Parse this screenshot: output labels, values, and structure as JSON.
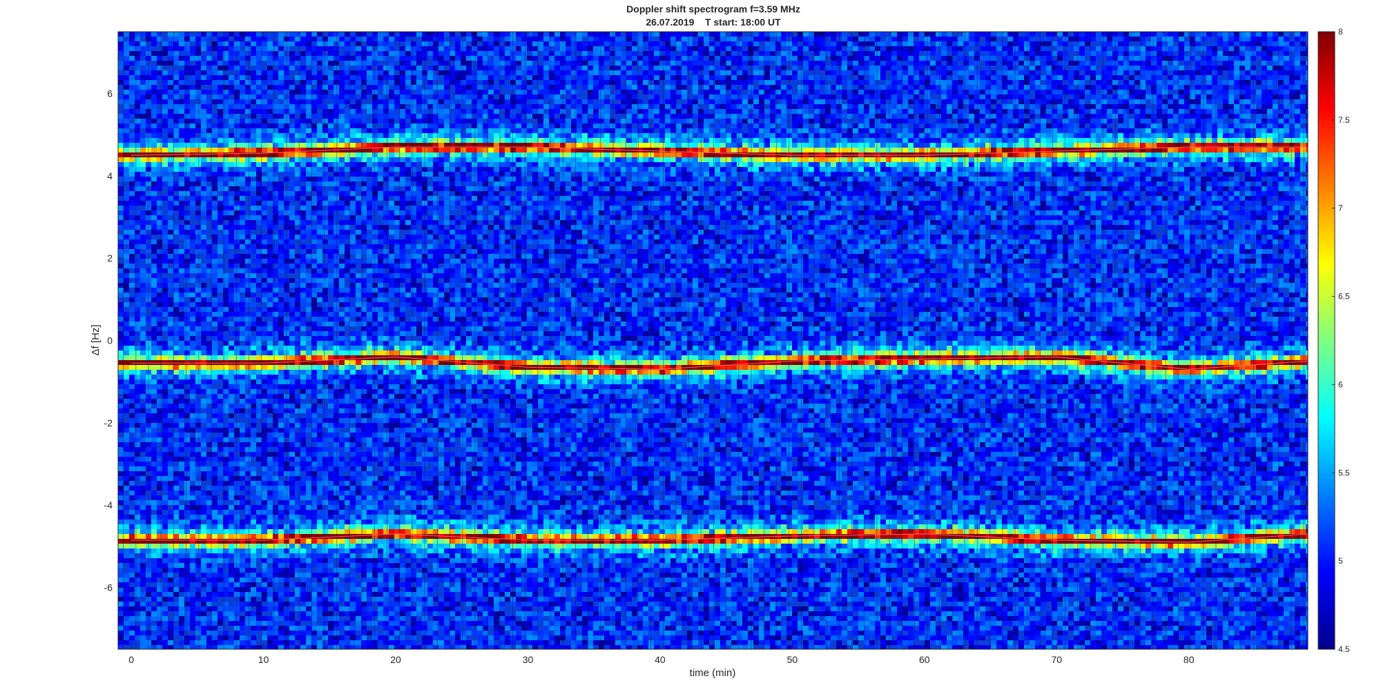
{
  "chart_data": {
    "type": "heatmap",
    "title": "Doppler shift spectrogram f=3.59 MHz",
    "subtitle": "26.07.2019    T start: 18:00 UT",
    "xlabel": "time (min)",
    "ylabel": "Δf [Hz]",
    "xlim": [
      -1,
      89
    ],
    "ylim": [
      -7.5,
      7.5
    ],
    "xticks": [
      0,
      10,
      20,
      30,
      40,
      50,
      60,
      70,
      80
    ],
    "yticks": [
      -6,
      -4,
      -2,
      0,
      2,
      4,
      6
    ],
    "colormap": "jet",
    "colorbar": {
      "range": [
        4.5,
        8
      ],
      "ticks": [
        "4.5",
        "5",
        "5.5",
        "6",
        "6.5",
        "7",
        "7.5",
        "8"
      ]
    },
    "background_level": 5.0,
    "ridges": [
      {
        "center_hz": 4.55,
        "x": [
          0,
          10,
          20,
          30,
          40,
          50,
          60,
          70,
          80,
          89
        ],
        "y": [
          4.5,
          4.55,
          4.7,
          4.7,
          4.6,
          4.5,
          4.5,
          4.6,
          4.7,
          4.7
        ]
      },
      {
        "center_hz": -0.55,
        "x": [
          0,
          10,
          20,
          30,
          40,
          50,
          60,
          70,
          80,
          89
        ],
        "y": [
          -0.55,
          -0.55,
          -0.4,
          -0.65,
          -0.7,
          -0.5,
          -0.45,
          -0.4,
          -0.7,
          -0.5
        ]
      },
      {
        "center_hz": -4.85,
        "x": [
          0,
          10,
          20,
          30,
          40,
          50,
          60,
          70,
          80,
          89
        ],
        "y": [
          -4.85,
          -4.85,
          -4.7,
          -4.85,
          -4.85,
          -4.75,
          -4.7,
          -4.85,
          -4.9,
          -4.7
        ]
      }
    ]
  }
}
